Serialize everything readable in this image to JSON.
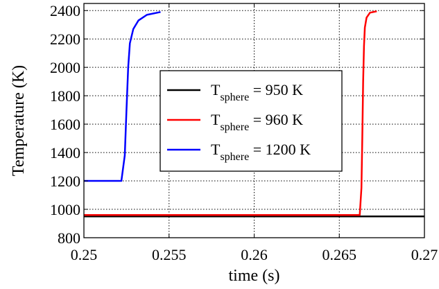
{
  "chart_data": {
    "type": "line",
    "title": "",
    "xlabel": "time (s)",
    "ylabel": "Temperature (K)",
    "xlim": [
      0.25,
      0.27
    ],
    "ylim": [
      800,
      2450
    ],
    "xticks": [
      0.25,
      0.255,
      0.26,
      0.265,
      0.27
    ],
    "xtick_labels": [
      "0.25",
      "0.255",
      "0.26",
      "0.265",
      "0.27"
    ],
    "yticks": [
      800,
      1000,
      1200,
      1400,
      1600,
      1800,
      2000,
      2200,
      2400
    ],
    "ytick_labels": [
      "800",
      "1000",
      "1200",
      "1400",
      "1600",
      "1800",
      "2000",
      "2200",
      "2400"
    ],
    "grid": true,
    "legend_position": "center",
    "series": [
      {
        "name": "T_sphere = 950 K",
        "legend_main": "T",
        "legend_sub": "sphere",
        "legend_rest": " = 950 K",
        "color": "#000000",
        "points": [
          [
            0.25,
            950
          ],
          [
            0.27,
            950
          ]
        ]
      },
      {
        "name": "T_sphere = 960 K",
        "legend_main": "T",
        "legend_sub": "sphere",
        "legend_rest": " = 960 K",
        "color": "#ff0000",
        "points": [
          [
            0.25,
            960
          ],
          [
            0.2662,
            960
          ],
          [
            0.2663,
            1150
          ],
          [
            0.26635,
            1500
          ],
          [
            0.2664,
            1900
          ],
          [
            0.26645,
            2150
          ],
          [
            0.2665,
            2280
          ],
          [
            0.2666,
            2350
          ],
          [
            0.2668,
            2385
          ],
          [
            0.2672,
            2395
          ]
        ]
      },
      {
        "name": "T_sphere = 1200 K",
        "legend_main": "T",
        "legend_sub": "sphere",
        "legend_rest": " = 1200 K",
        "color": "#0000ff",
        "points": [
          [
            0.25,
            1200
          ],
          [
            0.2522,
            1200
          ],
          [
            0.2524,
            1380
          ],
          [
            0.2525,
            1700
          ],
          [
            0.2526,
            2000
          ],
          [
            0.2527,
            2170
          ],
          [
            0.2529,
            2270
          ],
          [
            0.2532,
            2330
          ],
          [
            0.2537,
            2370
          ],
          [
            0.2545,
            2390
          ]
        ]
      }
    ]
  }
}
